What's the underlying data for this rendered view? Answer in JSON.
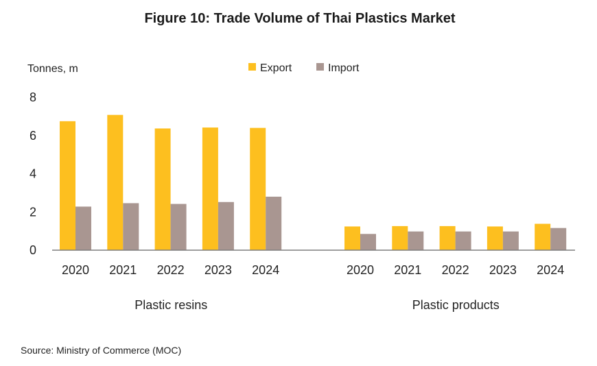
{
  "colors": {
    "export": "#FDBF1F",
    "import": "#A99691",
    "axis": "#7f7f7f"
  },
  "chart_data": {
    "type": "bar",
    "title": "Figure 10: Trade Volume of Thai Plastics Market",
    "ylabel": "Tonnes, m",
    "ylim": [
      0,
      8
    ],
    "yticks": [
      0,
      2,
      4,
      6,
      8
    ],
    "grid": false,
    "legend_position": "top-center",
    "series_names": [
      "Export",
      "Import"
    ],
    "groups": [
      {
        "name": "Plastic resins",
        "categories": [
          "2020",
          "2021",
          "2022",
          "2023",
          "2024"
        ],
        "series": [
          {
            "name": "Export",
            "values": [
              6.75,
              7.08,
              6.37,
              6.42,
              6.4
            ]
          },
          {
            "name": "Import",
            "values": [
              2.28,
              2.46,
              2.42,
              2.52,
              2.8
            ]
          }
        ]
      },
      {
        "name": "Plastic products",
        "categories": [
          "2020",
          "2021",
          "2022",
          "2023",
          "2024"
        ],
        "series": [
          {
            "name": "Export",
            "values": [
              1.24,
              1.26,
              1.26,
              1.24,
              1.38
            ]
          },
          {
            "name": "Import",
            "values": [
              0.85,
              0.98,
              0.98,
              0.98,
              1.16
            ]
          }
        ]
      }
    ],
    "source": "Source: Ministry of Commerce (MOC)"
  }
}
